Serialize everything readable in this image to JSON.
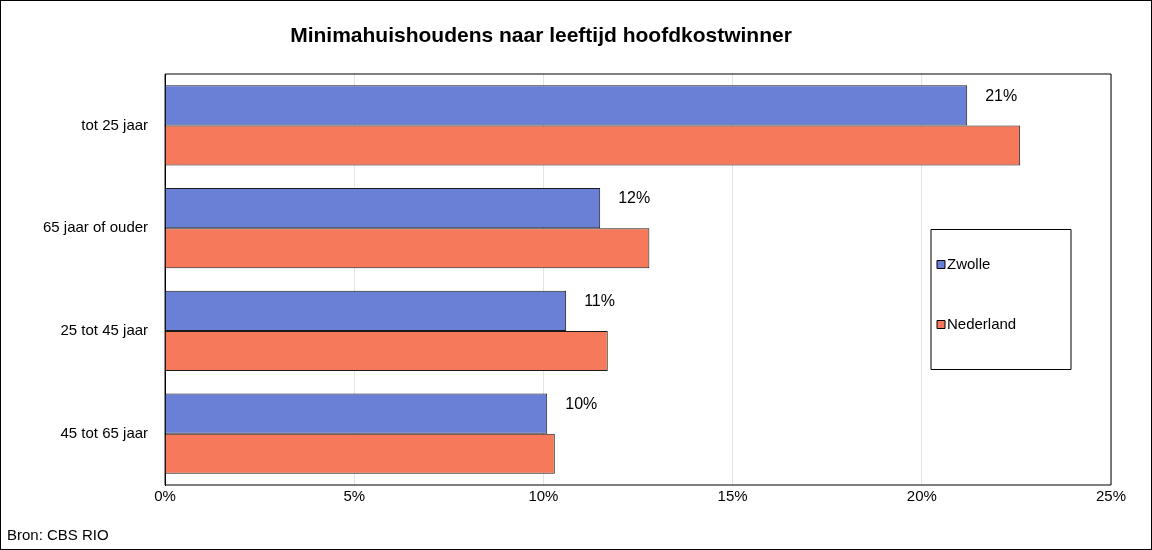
{
  "chart_data": {
    "type": "bar",
    "orientation": "horizontal",
    "title": "Minimahuishoudens  naar leeftijd hoofdkostwinner",
    "categories": [
      "tot 25 jaar",
      "65 jaar of ouder",
      "25 tot 45 jaar",
      "45 tot 65 jaar"
    ],
    "series": [
      {
        "name": "Zwolle",
        "color": "#6a7fd6",
        "values": [
          21.2,
          11.5,
          10.6,
          10.1
        ],
        "value_labels": [
          "21%",
          "12%",
          "11%",
          "10%"
        ]
      },
      {
        "name": "Nederland",
        "color": "#f5795a",
        "values": [
          22.6,
          12.8,
          11.7,
          10.3
        ]
      }
    ],
    "xlim": [
      0,
      25
    ],
    "xticks": [
      {
        "value": 0,
        "label": "0%"
      },
      {
        "value": 5,
        "label": "5%"
      },
      {
        "value": 10,
        "label": "10%"
      },
      {
        "value": 15,
        "label": "15%"
      },
      {
        "value": 20,
        "label": "20%"
      },
      {
        "value": 25,
        "label": "25%"
      }
    ],
    "grid": "x",
    "legend": "right",
    "annotations": [
      "Bron: CBS RIO"
    ]
  }
}
